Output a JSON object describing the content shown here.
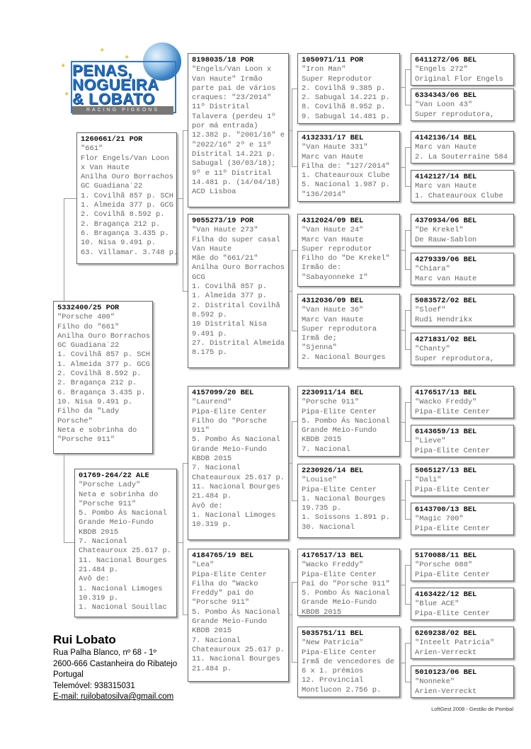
{
  "logo": {
    "line1": "PENAS,",
    "line2": "NOGUEIRA",
    "line3": "& LOBATO",
    "tagline": "RACING PIGEONS"
  },
  "pigeons": [
    {
      "key": "subject",
      "lines": [
        "5332400/25 POR",
        "\"Porsche 400\"",
        "Filho do \"661\"",
        "Anilha Ouro Borrachos",
        "GC Guadiana´22",
        "1. Covilhã 857 p. SCH",
        "1. Almeida 377 p. GCG",
        "2. Covilhã 8.592 p.",
        "2. Bragança 212 p.",
        "6. Bragança 3.435 p.",
        "10. Nisa 9.491 p.",
        "Filho da \"Lady",
        "Porsche\"",
        "Neta e sobrinha do",
        "\"Porsche 911\""
      ]
    },
    {
      "key": "sire",
      "lines": [
        "1260661/21 POR",
        "\"661\"",
        "Flor Engels/Van Loon",
        "x Van Haute",
        "Anilha Ouro Borrachos",
        "GC Guadiana´22",
        "1. Covilhã 857 p. SCH",
        "1. Almeida 377 p. GCG",
        "2. Covilhã 8.592 p.",
        "2. Bragança 212 p.",
        "6. Bragança 3.435 p.",
        "10. Nisa 9.491 p.",
        "63. Villamar. 3.748 p."
      ]
    },
    {
      "key": "dam",
      "lines": [
        "01769-264/22 ALE",
        "\"Porsche Lady\"",
        "Neta e sobrinha do",
        "\"Porsche 911\"",
        "5. Pombo Ás Nacional",
        "Grande Meio-Fundo",
        "KBDB 2015",
        "7. Nacional",
        "Chateauroux 25.617 p.",
        "11. Nacional Bourges",
        "21.484 p.",
        "Avô de:",
        "1. Nacional Limoges",
        "10.319 p.",
        "1. Nacional Souillac"
      ]
    },
    {
      "key": "g3a",
      "lines": [
        "8198035/18 POR",
        "\"Engels/Van Loon x",
        "Van Haute\" Irmão",
        "parte pai de vários",
        "craques: \"23/2014\"",
        "11º Distrital",
        "Talavera (perdeu 1º",
        "por má entrada)",
        "12.382 p. \"2001/16\" e",
        "\"2022/16\"  2º e 11º",
        "Distrital 14.221 p.",
        "Sabugal (30/03/18);",
        "9º e 11º  Distrital",
        "14.481 p.  (14/04/18)",
        "ACD Lisboa"
      ]
    },
    {
      "key": "g3b",
      "lines": [
        "9055273/19 POR",
        "\"Van Haute 273\"",
        "Filha do super casal",
        "Van Haute",
        "Mãe do \"661/21\"",
        "Anilha Ouro Borrachos",
        "GCG",
        "1. Covilhã 857 p.",
        "1. Almeida 377 p.",
        "2. Distrital Covilhã",
        "8.592 p.",
        "10 Distrital Nisa",
        "9.491 p.",
        "27. Distrital Almeida",
        "8.175 p."
      ]
    },
    {
      "key": "g3c",
      "lines": [
        "4157099/20 BEL",
        "\"Laurend\"",
        "Pipa-Elite Center",
        "Filho do \"Porsche",
        "911\"",
        "5. Pombo Ás Nacional",
        "Grande Meio-Fundo",
        "KBDB 2015",
        "7. Nacional",
        "Chateauroux 25.617 p.",
        "11. Nacional Bourges",
        "21.484 p.",
        "Avô de:",
        "1. Nacional Limoges",
        "10.319 p."
      ]
    },
    {
      "key": "g3d",
      "lines": [
        "4184765/19 BEL",
        "\"Lea\"",
        "Pipa-Elite Center",
        "Filha do \"Wacko",
        "Freddy\" pai do",
        "\"Porsche 911\"",
        "5. Pombo Ás Nacional",
        "Grande Meio-Fundo",
        "KBDB 2015",
        "7. Nacional",
        "Chateauroux 25.617 p.",
        "11. Nacional Bourges",
        "21.484 p."
      ]
    },
    {
      "key": "g4a",
      "lines": [
        "1050971/11 POR",
        "\"Iron Man\"",
        "Super Reprodutor",
        "2. Covilhã 9.385 p.",
        "2. Sabugal 14.221 p.",
        "8. Covilhã 8.952 p.",
        "9. Sabugal 14.481 p."
      ]
    },
    {
      "key": "g4b",
      "lines": [
        "4132331/17 BEL",
        "\"Van Haute 331\"",
        "Marc van Haute",
        "Filha de: \"127/2014\"",
        "1. Chateauroux Clube",
        "5. Nacional 1.987 p.",
        "\"136/2014\""
      ]
    },
    {
      "key": "g4c",
      "lines": [
        "4312024/09 BEL",
        "\"Van Haute 24\"",
        "Marc Van Haute",
        "Super reprodutor",
        "Filho do \"De Krekel\"",
        "Irmão de:",
        "\"Sabayonneke I\""
      ]
    },
    {
      "key": "g4d",
      "lines": [
        "4312036/09 BEL",
        "\"Van Haute 36\"",
        "Marc Van Haute",
        "Super reprodutora",
        "Irmã de;",
        "\"Sjenna\"",
        "2. Nacional Bourges"
      ]
    },
    {
      "key": "g4e",
      "lines": [
        "2230911/14 BEL",
        "\"Porsche 911\"",
        "Pipa-Elite Center",
        "5. Pombo Ás Nacional",
        "Grande Meio-Fundo",
        "KBDB 2015",
        "7. Nacional"
      ]
    },
    {
      "key": "g4f",
      "lines": [
        "2230926/14 BEL",
        "\"Louise\"",
        "Pipa-Elite Center",
        "1. Nacional Bourges",
        "19.735 p.",
        "1. Soissons 1.891 p.",
        "30. Nacional"
      ]
    },
    {
      "key": "g4g",
      "lines": [
        "4176517/13 BEL",
        "\"Wacko Freddy\"",
        "Pipa-Elite Center",
        "Pai do \"Porsche 911\"",
        "5. Pombo Ás Nacional",
        "Grande Meio-Fundo",
        "KBDB 2015"
      ]
    },
    {
      "key": "g4h",
      "lines": [
        "5035751/11 BEL",
        "\"New Patricia\"",
        "Pipa-Elite Center",
        "Irmã de vencedores de",
        "6 x 1. prémios",
        "12. Provincial",
        "Montlucon 2.756 p."
      ]
    },
    {
      "key": "g5a",
      "lines": [
        "6411272/06 BEL",
        "\"Engels 272\"",
        "Original Flor Engels"
      ]
    },
    {
      "key": "g5b",
      "lines": [
        "6334343/06 BEL",
        "\"Van Loon 43\"",
        "Super reprodutora,"
      ]
    },
    {
      "key": "g5c",
      "lines": [
        "4142136/14 BEL",
        "Marc van Haute",
        "2. La Souterraine 584"
      ]
    },
    {
      "key": "g5d",
      "lines": [
        "4142127/14 BEL",
        "Marc van Haute",
        "1. Chateauroux Clube"
      ]
    },
    {
      "key": "g5e",
      "lines": [
        "4370934/06 BEL",
        "\"De Krekel\"",
        "De Rauw-Sablon"
      ]
    },
    {
      "key": "g5f",
      "lines": [
        "4279339/06 BEL",
        "\"Chiara\"",
        "Marc van Haute"
      ]
    },
    {
      "key": "g5g",
      "lines": [
        "5083572/02 BEL",
        "\"Sloef\"",
        "Rudi Hendrikx"
      ]
    },
    {
      "key": "g5h",
      "lines": [
        "4271831/02 BEL",
        "\"Chanty\"",
        "Super reprodutora,"
      ]
    },
    {
      "key": "g5i",
      "lines": [
        "4176517/13 BEL",
        "\"Wacko Freddy\"",
        "Pipa-Elite Center"
      ]
    },
    {
      "key": "g5j",
      "lines": [
        "6143659/13 BEL",
        "\"Lieve\"",
        "Pipa-Elite Center"
      ]
    },
    {
      "key": "g5k",
      "lines": [
        "5065127/13 BEL",
        "\"Dali\"",
        "Pipa-Elite Center"
      ]
    },
    {
      "key": "g5l",
      "lines": [
        "6143700/13 BEL",
        "\"Magic 700\"",
        "Pipa-Elite Center"
      ]
    },
    {
      "key": "g5m",
      "lines": [
        "5170088/11 BEL",
        "\"Porsche 088\"",
        "Pipa-Elite Center"
      ]
    },
    {
      "key": "g5n",
      "lines": [
        "4163422/12 BEL",
        "\"Blue ACE\"",
        "Pipa-Elite Center"
      ]
    },
    {
      "key": "g5o",
      "lines": [
        "6269238/02 BEL",
        "\"Inteelt Patricia\"",
        "Arien-Verreckt"
      ]
    },
    {
      "key": "g5p",
      "lines": [
        "5010123/06 BEL",
        "\"Nonneke\"",
        "Arien-Verreckt"
      ]
    }
  ],
  "contact": {
    "name": "Rui Lobato",
    "address1": "Rua Palha Blanco, nº 68 - 1º",
    "address2": "2600-666 Castanheira do Ribatejo",
    "country": "Portugal",
    "phone": "Telemóvel: 938315031",
    "email": "E-mail: ruilobatosilva@gmail.com"
  },
  "footer": "LoftGest 2008 - Gestão de Pombal"
}
